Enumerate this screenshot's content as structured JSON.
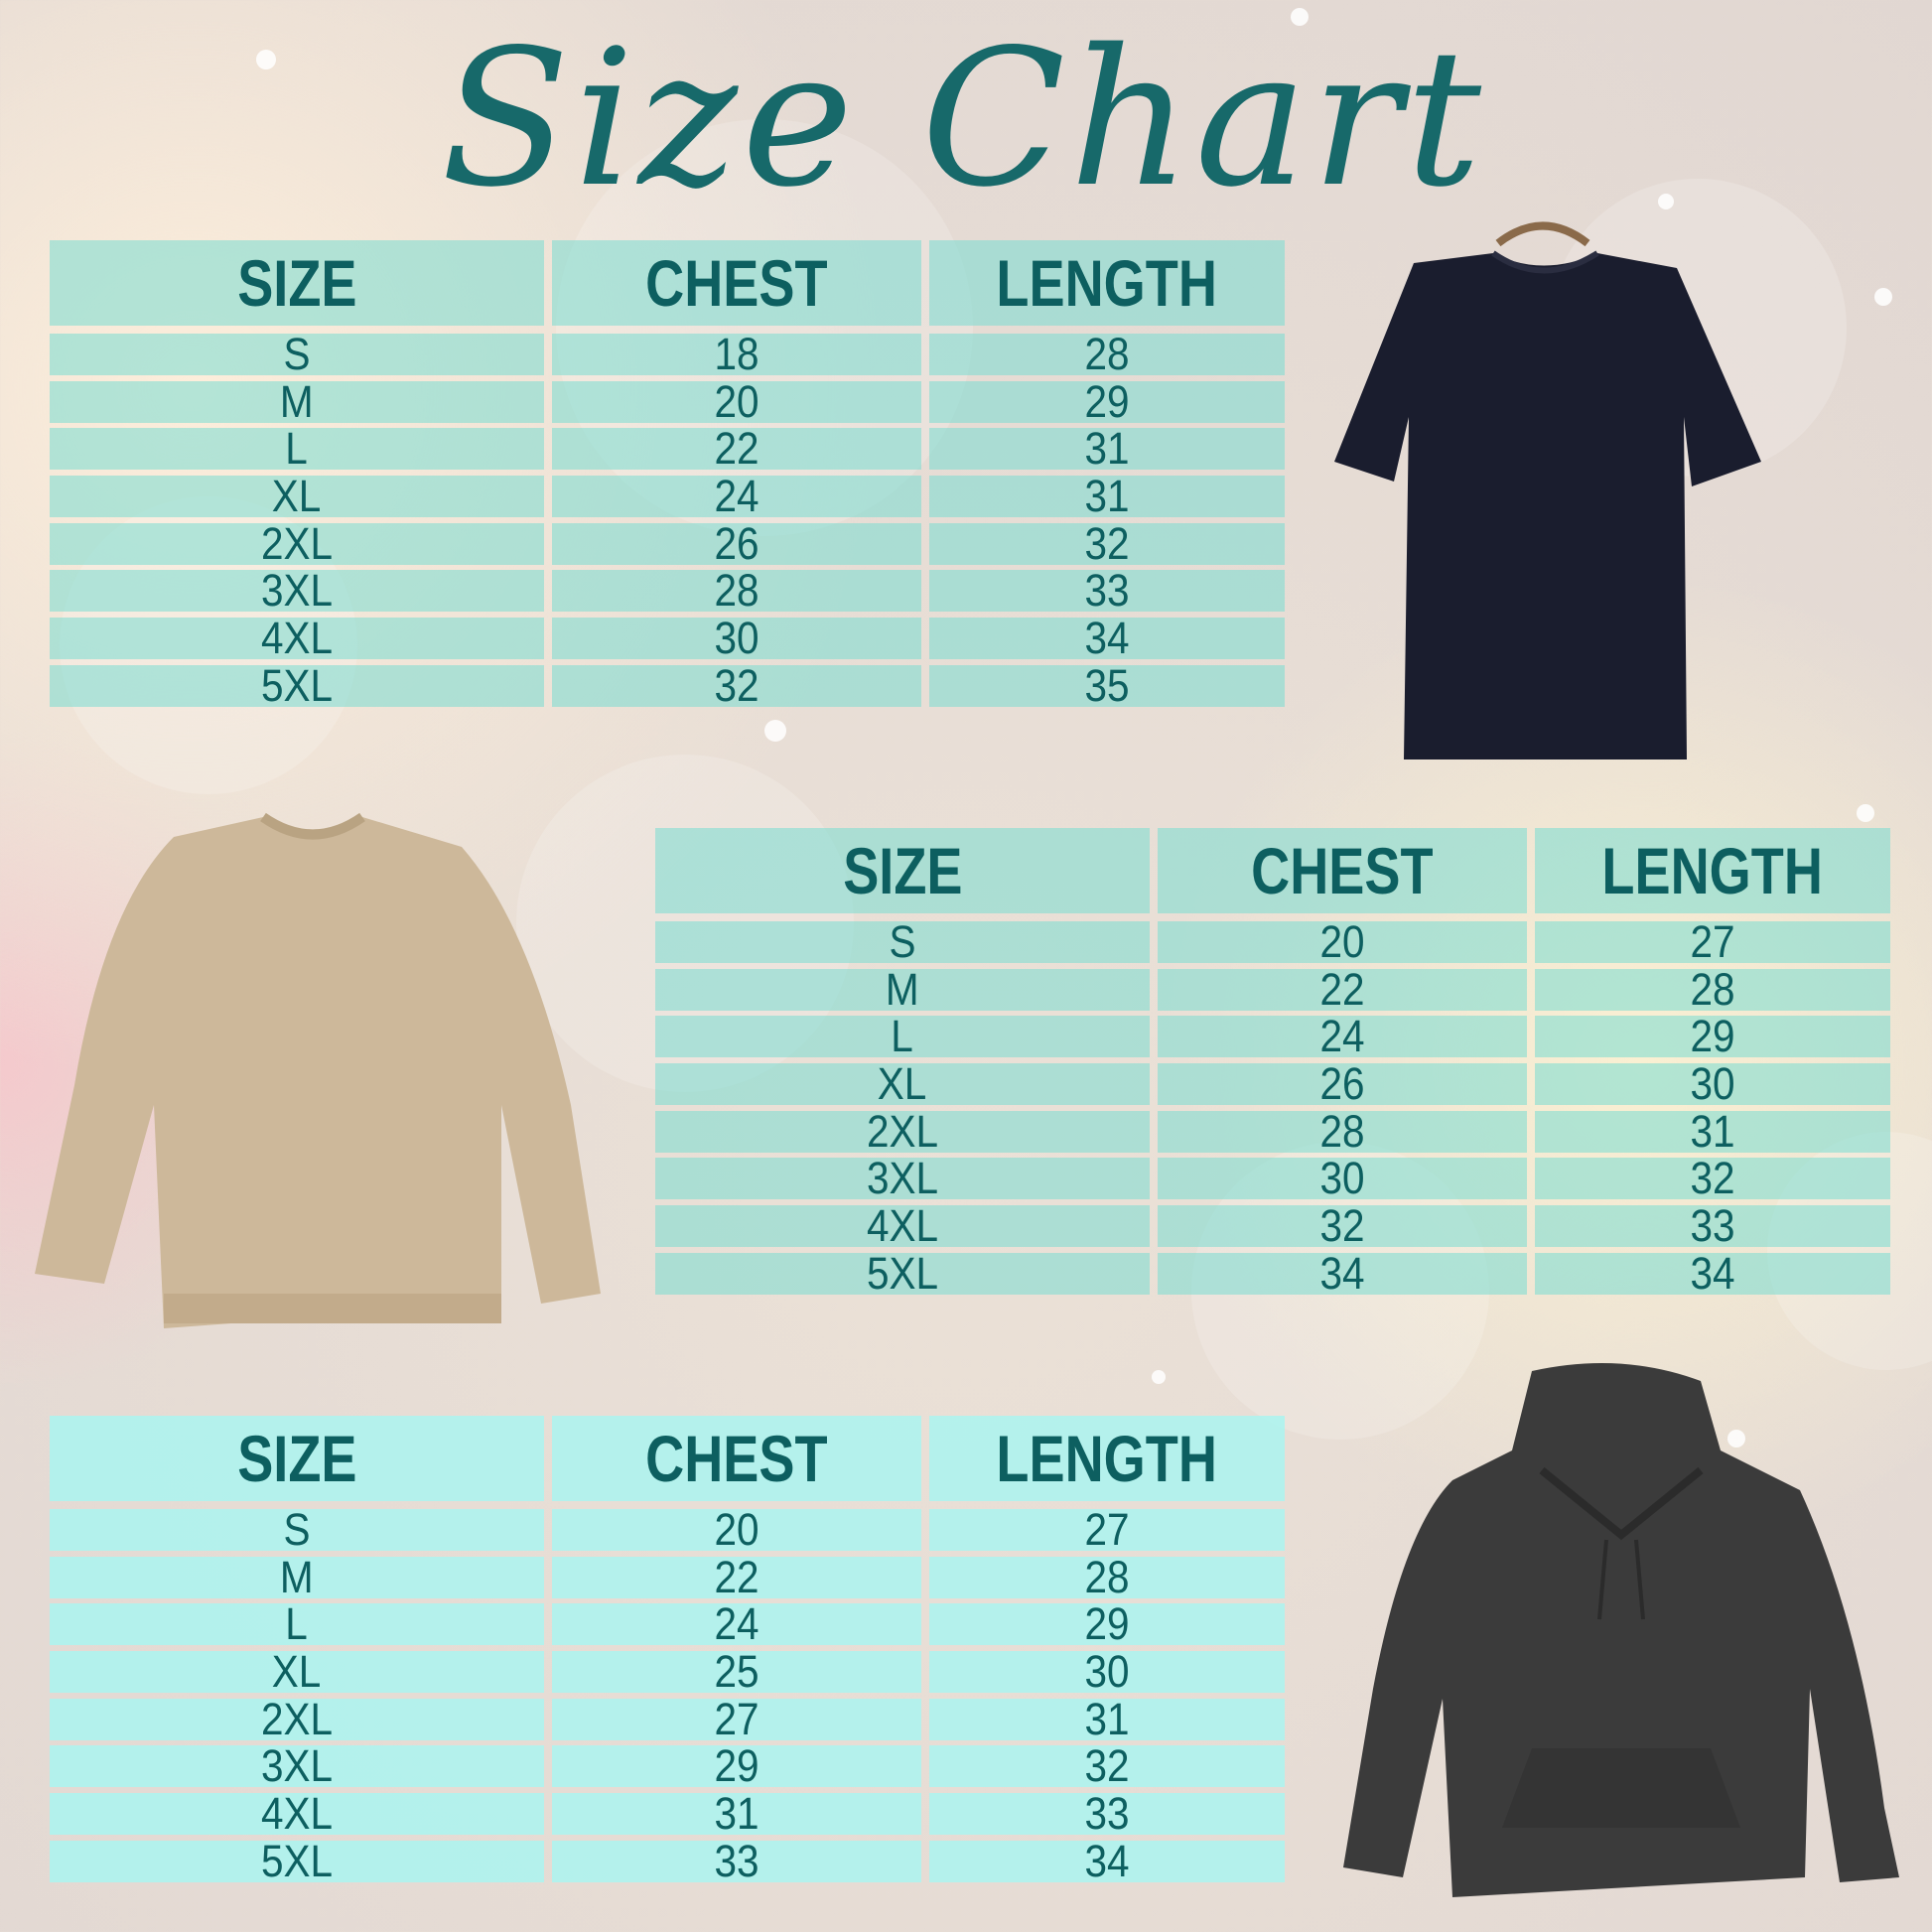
{
  "title": "Size Chart",
  "colors": {
    "title": "#17696a",
    "text": "#0d5f60",
    "cell": "#8fdcd2"
  },
  "tables": [
    {
      "garment": "t-shirt",
      "headers": [
        "SIZE",
        "CHEST",
        "LENGTH"
      ],
      "rows": [
        [
          "S",
          "18",
          "28"
        ],
        [
          "M",
          "20",
          "29"
        ],
        [
          "L",
          "22",
          "31"
        ],
        [
          "XL",
          "24",
          "31"
        ],
        [
          "2XL",
          "26",
          "32"
        ],
        [
          "3XL",
          "28",
          "33"
        ],
        [
          "4XL",
          "30",
          "34"
        ],
        [
          "5XL",
          "32",
          "35"
        ]
      ]
    },
    {
      "garment": "sweatshirt",
      "headers": [
        "SIZE",
        "CHEST",
        "LENGTH"
      ],
      "rows": [
        [
          "S",
          "20",
          "27"
        ],
        [
          "M",
          "22",
          "28"
        ],
        [
          "L",
          "24",
          "29"
        ],
        [
          "XL",
          "26",
          "30"
        ],
        [
          "2XL",
          "28",
          "31"
        ],
        [
          "3XL",
          "30",
          "32"
        ],
        [
          "4XL",
          "32",
          "33"
        ],
        [
          "5XL",
          "34",
          "34"
        ]
      ]
    },
    {
      "garment": "hoodie",
      "headers": [
        "SIZE",
        "CHEST",
        "LENGTH"
      ],
      "rows": [
        [
          "S",
          "20",
          "27"
        ],
        [
          "M",
          "22",
          "28"
        ],
        [
          "L",
          "24",
          "29"
        ],
        [
          "XL",
          "25",
          "30"
        ],
        [
          "2XL",
          "27",
          "31"
        ],
        [
          "3XL",
          "29",
          "32"
        ],
        [
          "4XL",
          "31",
          "33"
        ],
        [
          "5XL",
          "33",
          "34"
        ]
      ]
    }
  ]
}
